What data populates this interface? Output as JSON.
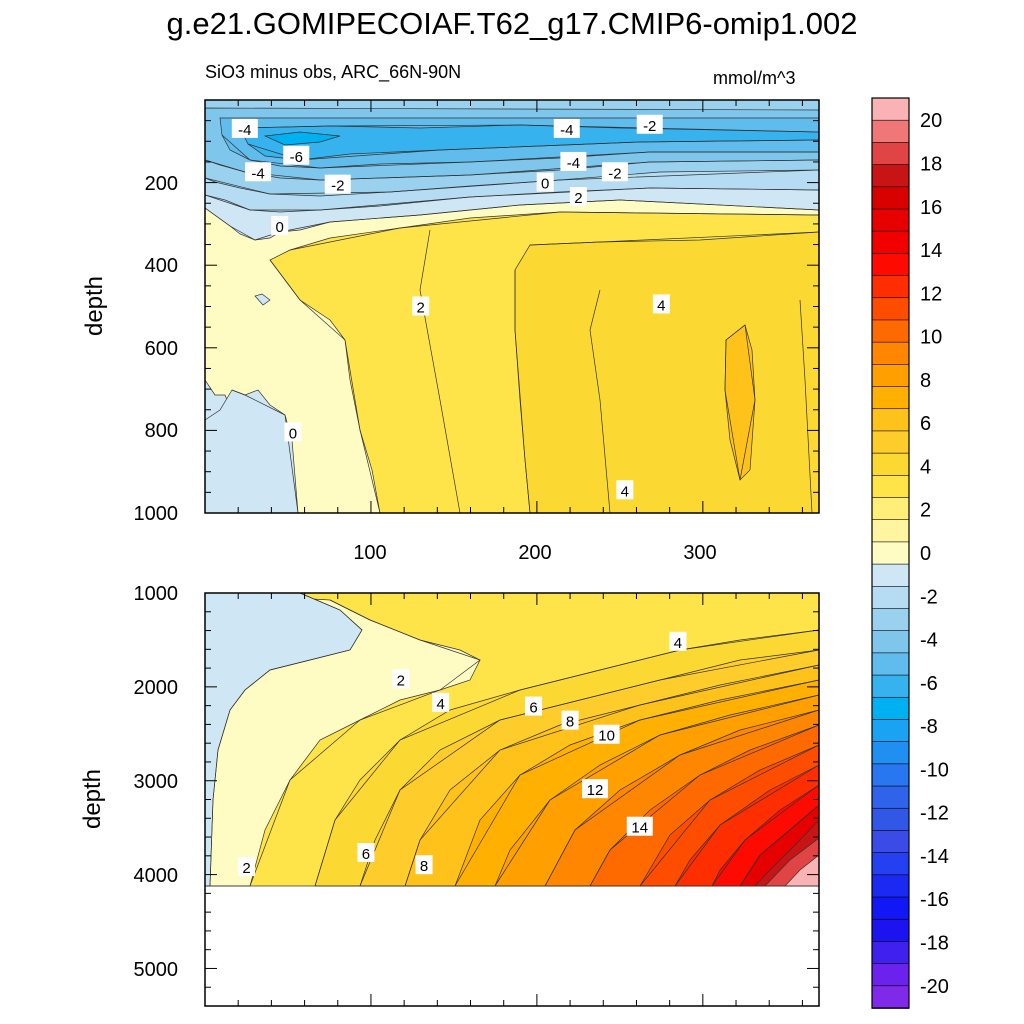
{
  "figure": {
    "title": "g.e21.GOMIPECOIAF.T62_g17.CMIP6-omip1.002",
    "subtitle_left": "SiO3 minus obs, ARC_66N-90N",
    "units": "mmol/m^3"
  },
  "colorbar": {
    "levels": [
      -20,
      -18,
      -16,
      -14,
      -12,
      -10,
      -8,
      -6,
      -4,
      -2,
      0,
      2,
      4,
      6,
      8,
      10,
      12,
      14,
      16,
      18,
      20
    ],
    "tick_labels": [
      "20",
      "18",
      "16",
      "14",
      "12",
      "10",
      "8",
      "6",
      "4",
      "2",
      "0",
      "-2",
      "-4",
      "-6",
      "-8",
      "-10",
      "-12",
      "-14",
      "-16",
      "-18",
      "-20"
    ],
    "colors_top_to_bottom": [
      "#f9b3b5",
      "#f07777",
      "#e04444",
      "#c81414",
      "#d90000",
      "#e60000",
      "#f20000",
      "#ff0a00",
      "#ff2e00",
      "#ff4d00",
      "#ff6a00",
      "#ff8600",
      "#ff9f00",
      "#ffb000",
      "#ffc21a",
      "#ffcd2b",
      "#fcd932",
      "#ffe449",
      "#ffef78",
      "#fff5a0",
      "#fefcc2",
      "#cfe6f5",
      "#b5dcf2",
      "#99d1ee",
      "#7ec6ec",
      "#5fbcec",
      "#36b3ef",
      "#00b1f2",
      "#19a3f2",
      "#1f8ff2",
      "#2876f0",
      "#2e63ea",
      "#3157e6",
      "#3a4be8",
      "#2440f0",
      "#1b29f2",
      "#1217f5",
      "#1c14f0",
      "#4020ee",
      "#6a22ec",
      "#7f2ae8"
    ]
  },
  "chart_data": [
    {
      "type": "heatmap",
      "panel": "upper",
      "xlabel": "",
      "ylabel": "depth",
      "xlim": [
        0,
        370
      ],
      "ylim": [
        1000,
        0
      ],
      "x_tick_labels": [
        "100",
        "200",
        "300"
      ],
      "y_tick_labels": [
        "200",
        "400",
        "600",
        "800",
        "1000"
      ],
      "contour_labels": [
        {
          "text": "-4",
          "x": 24,
          "y": 70
        },
        {
          "text": "-4",
          "x": 218,
          "y": 70
        },
        {
          "text": "-2",
          "x": 268,
          "y": 60
        },
        {
          "text": "-6",
          "x": 55,
          "y": 135
        },
        {
          "text": "-4",
          "x": 222,
          "y": 150
        },
        {
          "text": "-2",
          "x": 247,
          "y": 175
        },
        {
          "text": "-4",
          "x": 32,
          "y": 175
        },
        {
          "text": "-2",
          "x": 80,
          "y": 205
        },
        {
          "text": "0",
          "x": 205,
          "y": 200
        },
        {
          "text": "2",
          "x": 225,
          "y": 235
        },
        {
          "text": "0",
          "x": 45,
          "y": 305
        },
        {
          "text": "2",
          "x": 130,
          "y": 500
        },
        {
          "text": "4",
          "x": 275,
          "y": 495
        },
        {
          "text": "0",
          "x": 53,
          "y": 805
        },
        {
          "text": "4",
          "x": 253,
          "y": 945
        }
      ],
      "features": [
        "negative anomaly band (-2 to -7) between ~40 and ~250 m across all x",
        "near-zero values along x < 100 at depth",
        "positive anomaly (2 to 5) increasing with x below 300 m"
      ]
    },
    {
      "type": "heatmap",
      "panel": "lower",
      "xlabel": "",
      "ylabel": "depth",
      "xlim": [
        0,
        370
      ],
      "ylim": [
        5400,
        1000
      ],
      "y_tick_labels": [
        "1000",
        "2000",
        "3000",
        "4000",
        "5000"
      ],
      "data_bottom_depth": 4120,
      "contour_labels": [
        {
          "text": "4",
          "x": 285,
          "y": 1520
        },
        {
          "text": "2",
          "x": 118,
          "y": 1920
        },
        {
          "text": "4",
          "x": 142,
          "y": 2170
        },
        {
          "text": "6",
          "x": 198,
          "y": 2210
        },
        {
          "text": "8",
          "x": 220,
          "y": 2360
        },
        {
          "text": "10",
          "x": 242,
          "y": 2510
        },
        {
          "text": "12",
          "x": 235,
          "y": 3090
        },
        {
          "text": "14",
          "x": 262,
          "y": 3490
        },
        {
          "text": "2",
          "x": 25,
          "y": 3920
        },
        {
          "text": "6",
          "x": 97,
          "y": 3770
        },
        {
          "text": "8",
          "x": 132,
          "y": 3900
        }
      ],
      "features": [
        "values increase from ~0 at small x to >20 at large x and depth",
        "maximum anomaly (18-20+) in the deepest, largest-x corner"
      ]
    }
  ]
}
